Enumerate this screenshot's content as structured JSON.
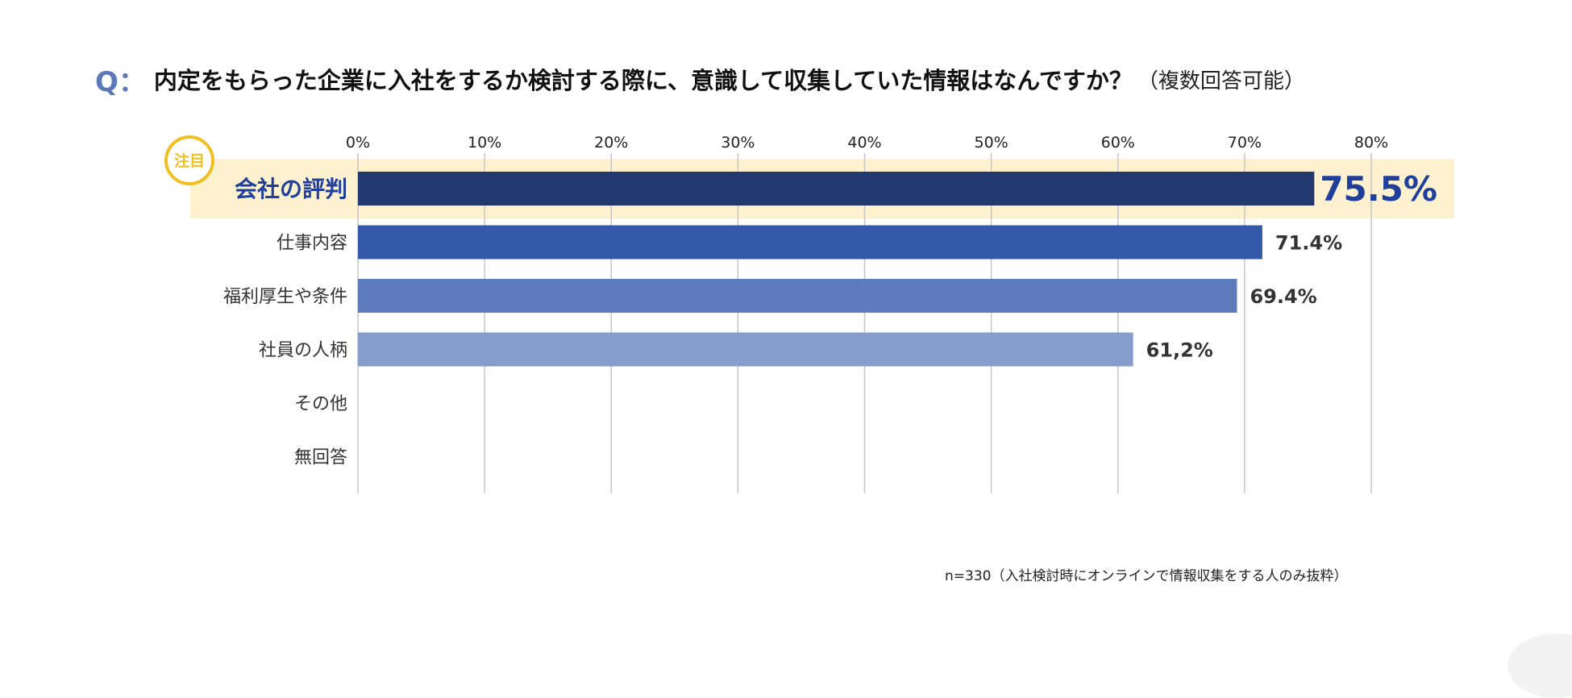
{
  "question": {
    "prefix": "Q：",
    "text": "内定をもらった企業に入社をするか検討する際に、意識して収集していた情報はなんですか？",
    "note": "（複数回答可能）"
  },
  "badge": {
    "label": "注目"
  },
  "footnote": "n=330（入社検討時にオンラインで情報収集をする人のみ抜粋）",
  "colors": {
    "highlight_band": "#fdf1cf",
    "badge_ring": "#f0c020",
    "highlight_label": "#1f3f9a",
    "grid": "#c6c6c6",
    "value_text": "#333333"
  },
  "chart_data": {
    "type": "bar",
    "orientation": "horizontal",
    "title": "内定をもらった企業に入社をするか検討する際に、意識して収集していた情報はなんですか？",
    "xlabel": "",
    "ylabel": "",
    "xlim": [
      0,
      80
    ],
    "ticks": [
      "0%",
      "10%",
      "20%",
      "30%",
      "40%",
      "50%",
      "60%",
      "70%",
      "80%"
    ],
    "tick_values": [
      0,
      10,
      20,
      30,
      40,
      50,
      60,
      70,
      80
    ],
    "grid": true,
    "categories": [
      "会社の評判",
      "仕事内容",
      "福利厚生や条件",
      "社員の人柄",
      "その他",
      "無回答"
    ],
    "values": [
      75.5,
      71.4,
      69.4,
      61.2,
      null,
      null
    ],
    "value_labels": [
      "75.5%",
      "71.4%",
      "69.4%",
      "61,2%",
      "",
      ""
    ],
    "bar_colors": [
      "#22396f",
      "#3358a8",
      "#5e7bbb",
      "#879dcc",
      "#879dcc",
      "#879dcc"
    ],
    "highlighted_index": 0
  }
}
